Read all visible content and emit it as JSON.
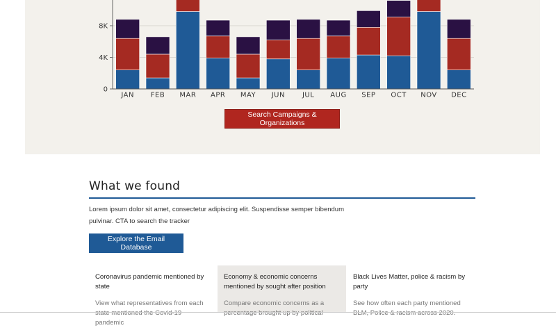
{
  "chart_data": {
    "type": "bar",
    "stacked": true,
    "categories": [
      "JAN",
      "FEB",
      "MAR",
      "APR",
      "MAY",
      "JUN",
      "JUL",
      "AUG",
      "SEP",
      "OCT",
      "NOV",
      "DEC"
    ],
    "series": [
      {
        "color": "#1f5a96",
        "values": [
          2400,
          1400,
          9800,
          3900,
          1400,
          3800,
          2400,
          3900,
          4300,
          4200,
          9800,
          2400
        ]
      },
      {
        "color": "#a52a22",
        "values": [
          4000,
          3000,
          2200,
          2800,
          3000,
          2400,
          4000,
          2800,
          3500,
          4900,
          2200,
          4000
        ]
      },
      {
        "color": "#2a1143",
        "values": [
          2400,
          2200,
          0,
          2000,
          2200,
          2500,
          2400,
          2000,
          2100,
          2100,
          0,
          2400
        ]
      }
    ],
    "y_ticks": [
      "0",
      "4K",
      "8K"
    ],
    "y_tick_values": [
      0,
      4000,
      8000
    ],
    "ylim": [
      0,
      11000
    ],
    "grid": true
  },
  "search_button": "Search Campaigns & Organizations",
  "found": {
    "title": "What we found",
    "description": "Lorem ipsum dolor sit amet, consectetur adipiscing elit. Suspendisse semper bibendum pulvinar. CTA to search the tracker",
    "email_button": "Explore the Email Database"
  },
  "cards": [
    {
      "title": "Coronavirus pandemic mentioned by state",
      "text": "View what representatives from each state mentioned the Covid-19 pandemic"
    },
    {
      "title": "Economy & economic concerns mentioned by sought after position",
      "text": "Compare economic concerns as a percentage brought up by political"
    },
    {
      "title": "Black Lives Matter, police & racism by party",
      "text": "See how often each party mentioned BLM, Police & racism across 2020."
    }
  ]
}
